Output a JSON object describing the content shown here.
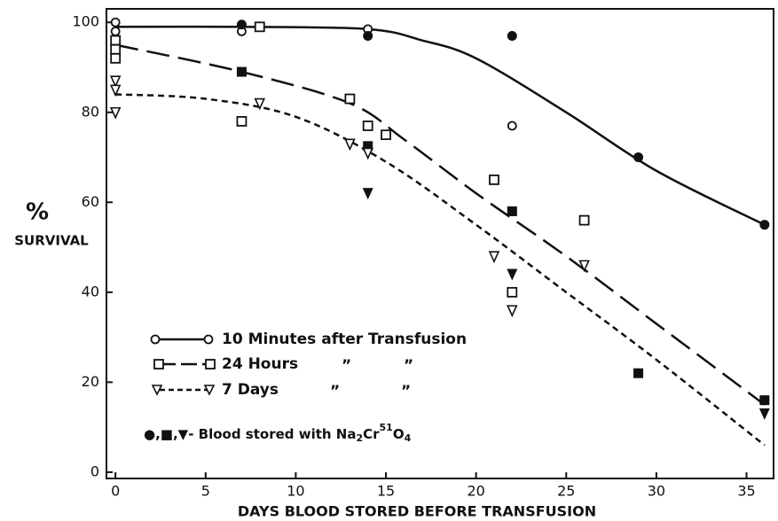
{
  "chart_data": {
    "type": "scatter",
    "ylabel_symbol": "%",
    "ylabel": "SURVIVAL",
    "xlabel": "DAYS BLOOD STORED BEFORE TRANSFUSION",
    "xlim": [
      -0.5,
      36.5
    ],
    "ylim": [
      -1.4,
      103
    ],
    "xticks": [
      0,
      5,
      10,
      15,
      20,
      25,
      30,
      35
    ],
    "yticks": [
      0,
      20,
      40,
      60,
      80,
      100
    ],
    "color": "#111111",
    "series": [
      {
        "name": "10 Minutes after Transfusion",
        "dash": "none",
        "x": [
          0,
          7,
          14,
          17,
          20,
          25,
          30,
          36
        ],
        "values": [
          99,
          99,
          98.5,
          96,
          92,
          80,
          67,
          55
        ]
      },
      {
        "name": "24 Hours",
        "dash": "26 10",
        "x": [
          0,
          7,
          13,
          16,
          20,
          25,
          30,
          36
        ],
        "values": [
          95,
          89,
          82,
          74,
          62,
          48,
          33,
          15
        ]
      },
      {
        "name": "7 Days",
        "dash": "7 5",
        "x": [
          0,
          5,
          10,
          15,
          20,
          25,
          30,
          36
        ],
        "values": [
          84,
          83,
          79,
          69,
          55,
          40,
          25,
          6
        ]
      }
    ],
    "points": [
      {
        "marker": "open-circle",
        "x": [
          0,
          0,
          7,
          14,
          22
        ],
        "values": [
          100,
          98,
          98,
          98.5,
          77
        ]
      },
      {
        "marker": "filled-circle",
        "x": [
          7,
          14,
          22,
          29,
          36
        ],
        "values": [
          99.5,
          97,
          97,
          70,
          55
        ]
      },
      {
        "marker": "open-square",
        "x": [
          0,
          0,
          0,
          8,
          7,
          13,
          14,
          15,
          21,
          22,
          26
        ],
        "values": [
          96,
          94,
          92,
          99,
          78,
          83,
          77,
          75,
          65,
          40,
          56
        ]
      },
      {
        "marker": "filled-square",
        "x": [
          7,
          14,
          22,
          29,
          36
        ],
        "values": [
          89,
          72.5,
          58,
          22,
          16
        ]
      },
      {
        "marker": "open-triangle",
        "x": [
          0,
          0,
          0,
          8,
          13,
          14,
          21,
          22,
          26
        ],
        "values": [
          87,
          85,
          80,
          82,
          73,
          71,
          48,
          36,
          46
        ]
      },
      {
        "marker": "filled-triangle",
        "x": [
          14,
          22,
          36
        ],
        "values": [
          62,
          44,
          13
        ]
      }
    ],
    "ditto": "”",
    "note": [
      "●,■,▼- Blood stored with Na",
      "2",
      "Cr",
      "51",
      "O",
      "4"
    ]
  }
}
